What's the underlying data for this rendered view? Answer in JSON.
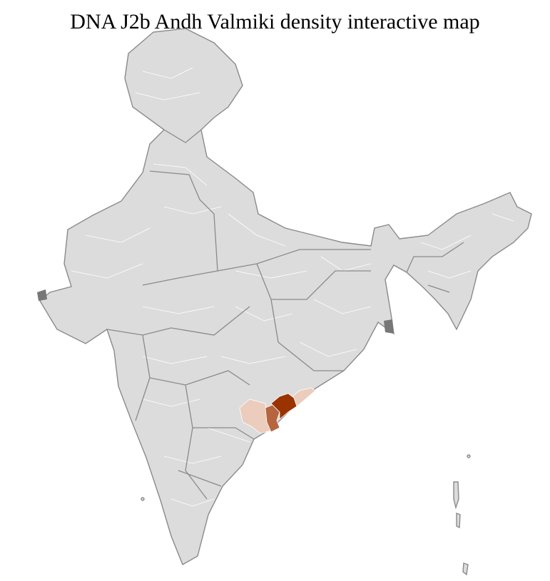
{
  "title": "DNA J2b Andh Valmiki density interactive map",
  "map": {
    "base_color": "#dcdcdc",
    "border_color": "#8a8a8a",
    "density_levels": [
      {
        "level": "high",
        "color": "#9a3300"
      },
      {
        "level": "medium",
        "color": "#b5653f"
      },
      {
        "level": "low",
        "color": "#ecccbc"
      }
    ]
  }
}
